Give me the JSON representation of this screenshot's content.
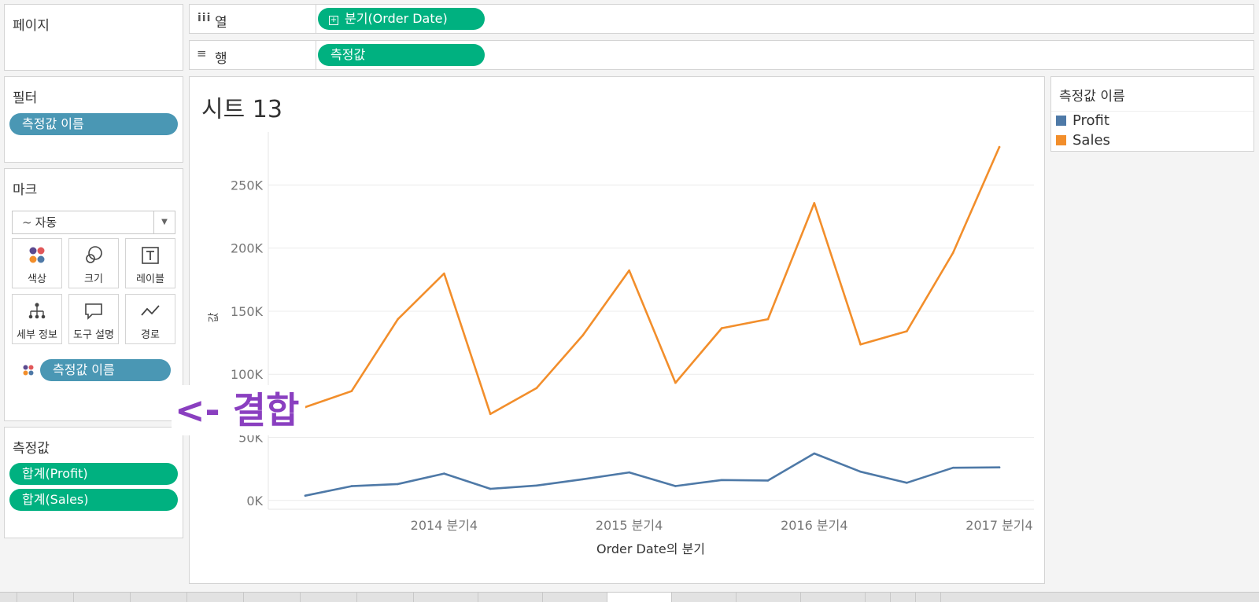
{
  "pages_panel": {
    "title": "페이지"
  },
  "columns_shelf": {
    "icon": "columns-icon",
    "label": "열",
    "pill": "분기(Order Date)"
  },
  "rows_shelf": {
    "icon": "rows-icon",
    "label": "행",
    "pill": "측정값"
  },
  "filters_panel": {
    "title": "필터",
    "pill": "측정값 이름"
  },
  "marks_panel": {
    "title": "마크",
    "mark_type": "자동",
    "buttons": [
      {
        "label": "색상",
        "icon": "color-icon"
      },
      {
        "label": "크기",
        "icon": "size-icon"
      },
      {
        "label": "레이블",
        "icon": "label-icon"
      },
      {
        "label": "세부 정보",
        "icon": "detail-icon"
      },
      {
        "label": "도구 설명",
        "icon": "tooltip-icon"
      },
      {
        "label": "경로",
        "icon": "path-icon"
      }
    ],
    "color_pill": "측정값 이름"
  },
  "measure_values_panel": {
    "title": "측정값",
    "pills": [
      "합계(Profit)",
      "합계(Sales)"
    ]
  },
  "legend": {
    "title": "측정값 이름",
    "items": [
      {
        "name": "Profit",
        "color": "#4e79a7"
      },
      {
        "name": "Sales",
        "color": "#f28e2b"
      }
    ]
  },
  "annotation": "<- 결합",
  "chart_data": {
    "type": "line",
    "title": "시트 13",
    "xlabel": "Order Date의 분기",
    "ylabel": "값",
    "x": [
      "2014 분기1",
      "2014 분기2",
      "2014 분기3",
      "2014 분기4",
      "2015 분기1",
      "2015 분기2",
      "2015 분기3",
      "2015 분기4",
      "2016 분기1",
      "2016 분기2",
      "2016 분기3",
      "2016 분기4",
      "2017 분기1",
      "2017 분기2",
      "2017 분기3",
      "2017 분기4"
    ],
    "x_tick_labels": [
      "2014 분기4",
      "2015 분기4",
      "2016 분기4",
      "2017 분기4"
    ],
    "y_ticks": [
      0,
      50000,
      100000,
      150000,
      200000,
      250000
    ],
    "y_tick_labels": [
      "0K",
      "50K",
      "100K",
      "150K",
      "200K",
      "250K"
    ],
    "ylim": [
      -7000,
      292000
    ],
    "grid": true,
    "series": [
      {
        "name": "Profit",
        "color": "#4e79a7",
        "values": [
          3800,
          11300,
          13000,
          21300,
          9200,
          11800,
          16800,
          22200,
          11400,
          16200,
          15800,
          37200,
          22800,
          14000,
          25900,
          26200
        ]
      },
      {
        "name": "Sales",
        "color": "#f28e2b",
        "values": [
          74000,
          86600,
          143600,
          179900,
          68500,
          89100,
          131000,
          182300,
          93200,
          136500,
          143700,
          235700,
          123600,
          134100,
          196300,
          280100
        ]
      }
    ]
  }
}
